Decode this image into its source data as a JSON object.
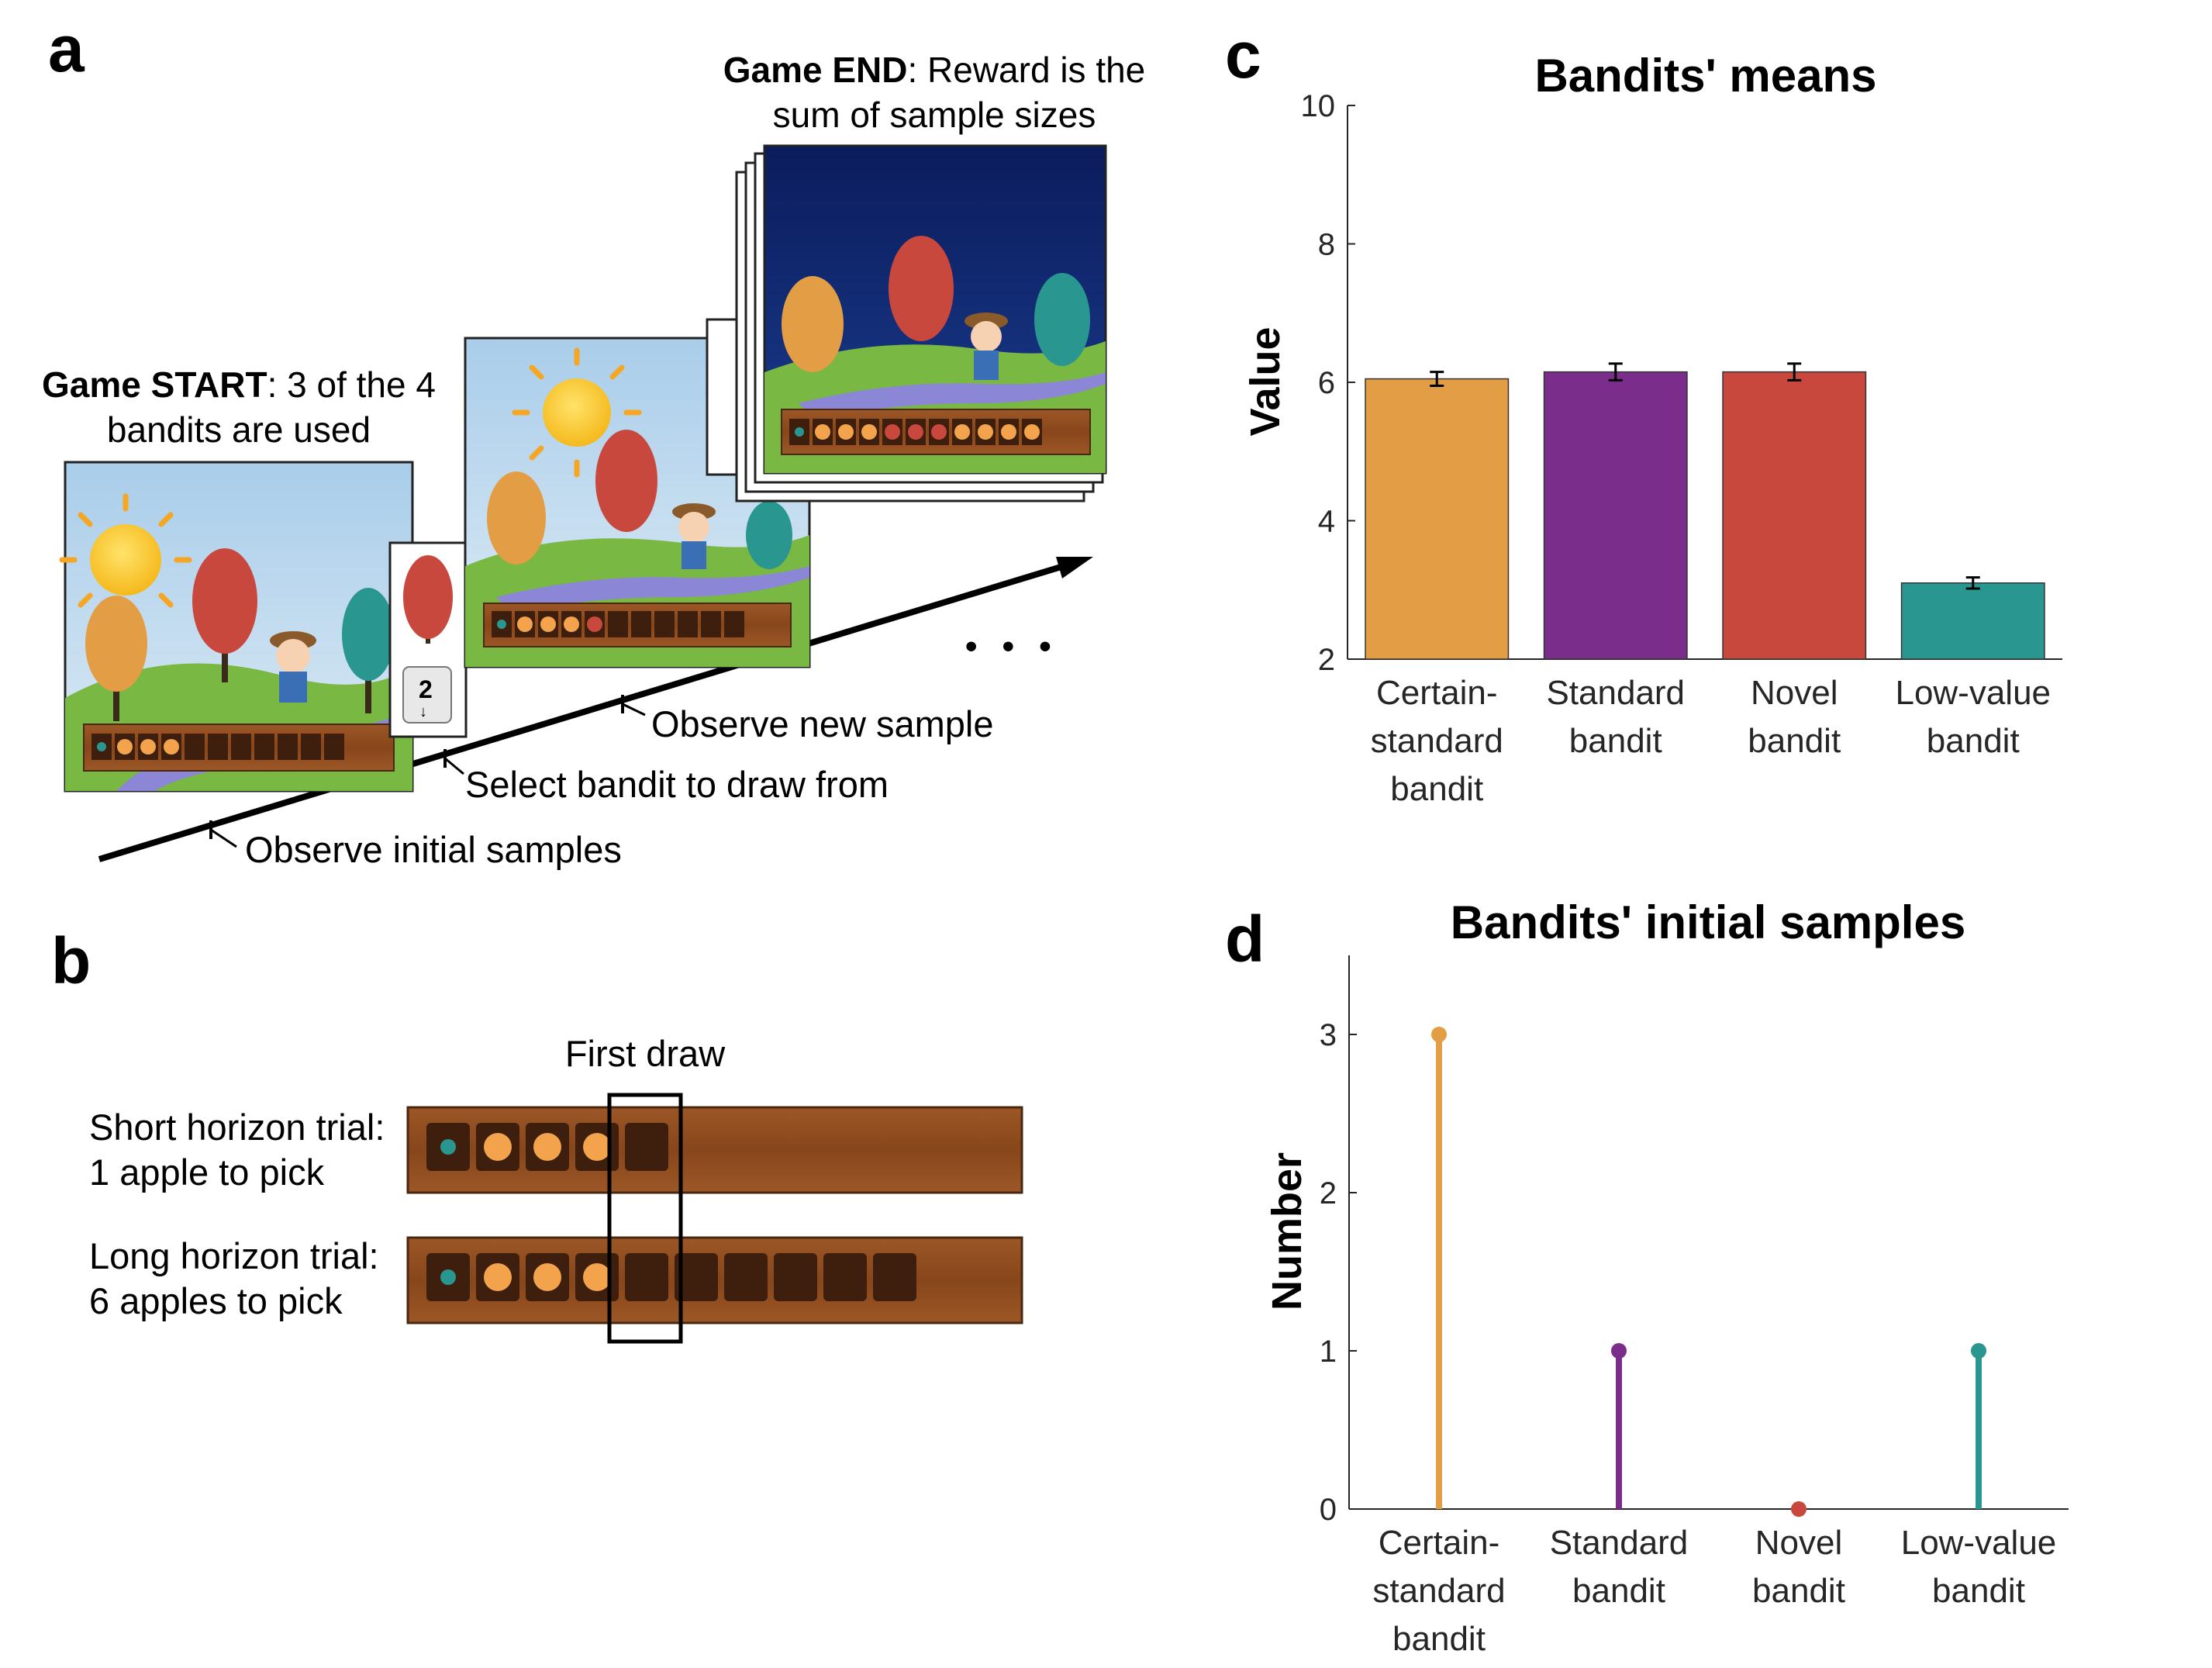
{
  "panel_labels": {
    "a": "a",
    "b": "b",
    "c": "c",
    "d": "d"
  },
  "panel_a": {
    "start_bold": "Game START",
    "start_rest": ": 3 of the 4",
    "start_line2": "bandits are used",
    "end_bold": "Game END",
    "end_rest": ": Reward is the",
    "end_line2": "sum of sample sizes",
    "key_number": "2",
    "key_arrow": "↓",
    "step_initial": "Observe initial samples",
    "step_select": "Select bandit to draw from",
    "step_new": "Observe new sample",
    "ellipsis": "• • •"
  },
  "panel_b": {
    "first_draw": "First draw",
    "short_line1": "Short horizon trial:",
    "short_line2": "1 apple to pick",
    "long_line1": "Long horizon trial:",
    "long_line2": "6 apples to pick"
  },
  "colors": {
    "certain_standard": "#E39D45",
    "standard": "#7B2D8B",
    "novel": "#C9483E",
    "low_value": "#2A9690",
    "sky": "#BCD9EE",
    "night": "#0F2266",
    "grass": "#79B843",
    "wood": "#8A4A1E",
    "slot": "#3E1E0C",
    "apple": "#F2A34B"
  },
  "chart_data": [
    {
      "type": "bar",
      "title": "Bandits' means",
      "xlabel": "",
      "ylabel": "Value",
      "categories": [
        [
          "Certain-",
          "standard",
          "bandit"
        ],
        [
          "Standard",
          "bandit"
        ],
        [
          "Novel",
          "bandit"
        ],
        [
          "Low-value",
          "bandit"
        ]
      ],
      "values": [
        6.05,
        6.15,
        6.15,
        3.1
      ],
      "errors": [
        0.1,
        0.12,
        0.12,
        0.08
      ],
      "ylim": [
        2,
        10
      ],
      "yticks": [
        2,
        4,
        6,
        8,
        10
      ],
      "grid": false
    },
    {
      "type": "stem",
      "title": "Bandits' initial samples",
      "xlabel": "",
      "ylabel": "Number",
      "categories": [
        [
          "Certain-",
          "standard",
          "bandit"
        ],
        [
          "Standard",
          "bandit"
        ],
        [
          "Novel",
          "bandit"
        ],
        [
          "Low-value",
          "bandit"
        ]
      ],
      "values": [
        3,
        1,
        0,
        1
      ],
      "ylim": [
        0,
        3.5
      ],
      "yticks": [
        0,
        1,
        2,
        3
      ],
      "grid": false
    }
  ]
}
